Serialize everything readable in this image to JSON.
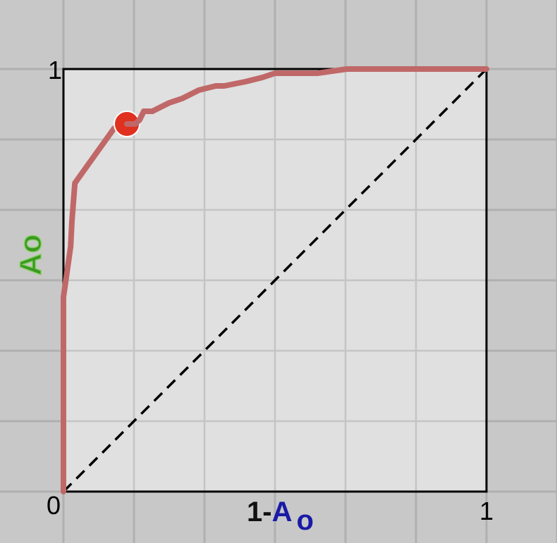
{
  "chart_data": {
    "type": "line",
    "xlabel_prefix": "1-",
    "xlabel_var": "A",
    "xlabel_sub": "o",
    "ylabel": "Ao",
    "xlim": [
      0,
      1
    ],
    "ylim": [
      0,
      1
    ],
    "x_ticks": [
      "0",
      "1"
    ],
    "y_ticks": [
      "1"
    ],
    "grid": true,
    "series": [
      {
        "color": "#c06868",
        "x": [
          0.0,
          0.0,
          0.017,
          0.02,
          0.027,
          0.12,
          0.15,
          0.17,
          0.18,
          0.19,
          0.21,
          0.25,
          0.28,
          0.32,
          0.36,
          0.38,
          0.43,
          0.47,
          0.5,
          0.55,
          0.6,
          0.67,
          1.0
        ],
        "y": [
          0.0,
          0.46,
          0.58,
          0.64,
          0.73,
          0.86,
          0.87,
          0.87,
          0.88,
          0.9,
          0.9,
          0.92,
          0.93,
          0.95,
          0.96,
          0.96,
          0.97,
          0.98,
          0.99,
          0.99,
          0.99,
          1.0,
          1.0
        ]
      },
      {
        "style": "dashed",
        "color": "#000000",
        "x": [
          0,
          1
        ],
        "y": [
          0,
          1
        ]
      }
    ],
    "highlight_point": {
      "x": 0.15,
      "y": 0.87,
      "color": "#e03020"
    }
  }
}
